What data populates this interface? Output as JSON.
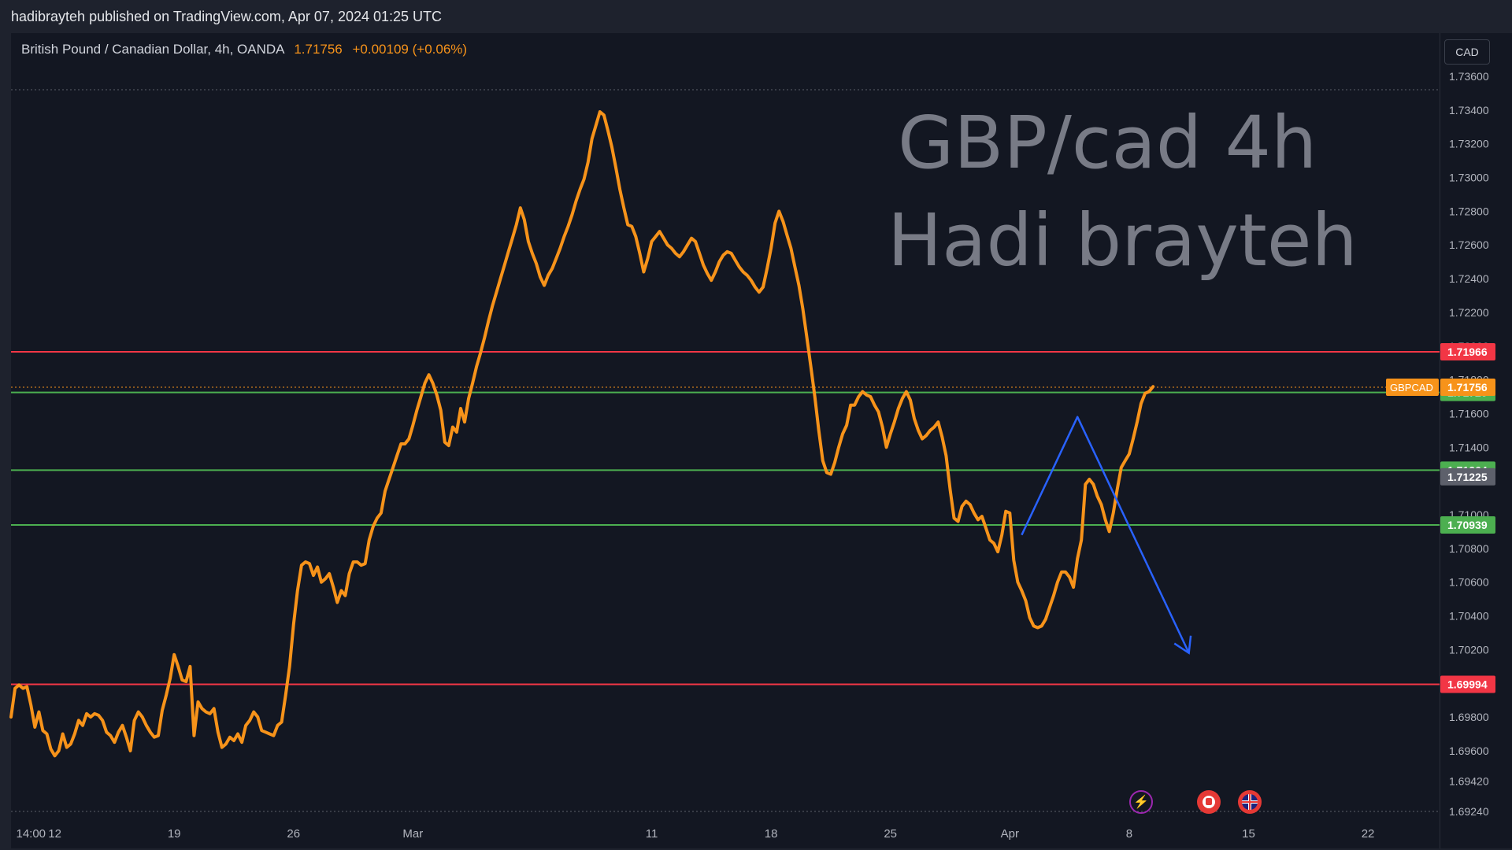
{
  "header": {
    "published_text": "hadibrayteh published on TradingView.com, Apr 07, 2024 01:25 UTC"
  },
  "legend": {
    "symbol_text": "British Pound / Canadian Dollar, 4h, OANDA",
    "last_price": "1.71756",
    "change": "+0.00109 (+0.06%)"
  },
  "currency_button": "CAD",
  "watermark": {
    "line1": "GBP/cad 4h",
    "line2": "Hadi brayteh"
  },
  "colors": {
    "series": "#f7931a",
    "red_line": "#f23645",
    "green_line": "#4caf50",
    "arrow": "#2962ff",
    "background": "#131722"
  },
  "events": [
    {
      "icon": "lightning-icon",
      "color": "#9c27b0"
    },
    {
      "icon": "canada-flag-icon",
      "color": "#e53935"
    },
    {
      "icon": "uk-flag-icon",
      "color": "#e53935"
    }
  ],
  "chart_data": {
    "type": "line",
    "title": "GBP/cad 4h",
    "ylim": [
      1.6921,
      1.7374
    ],
    "y_ticks": [
      1.736,
      1.734,
      1.732,
      1.73,
      1.728,
      1.726,
      1.724,
      1.722,
      1.72,
      1.718,
      1.716,
      1.714,
      1.712,
      1.71,
      1.708,
      1.706,
      1.704,
      1.702,
      1.7,
      1.698,
      1.696,
      1.6942,
      1.6924
    ],
    "y_tick_labels": [
      "1.73600",
      "1.73400",
      "1.73200",
      "1.73000",
      "1.72800",
      "1.72600",
      "1.72400",
      "1.72200",
      "1.72000",
      "1.71800",
      "1.71600",
      "1.71400",
      "1.71200",
      "1.71000",
      "1.70800",
      "1.70600",
      "1.70400",
      "1.70200",
      "1.70000",
      "1.69800",
      "1.69600",
      "1.69420",
      "1.69240"
    ],
    "x_ticks": [
      {
        "label": "14:00",
        "index": 5
      },
      {
        "label": "12",
        "index": 11
      },
      {
        "label": "19",
        "index": 41
      },
      {
        "label": "26",
        "index": 71
      },
      {
        "label": "Mar",
        "index": 101
      },
      {
        "label": "11",
        "index": 161
      },
      {
        "label": "18",
        "index": 191
      },
      {
        "label": "25",
        "index": 221
      },
      {
        "label": "Apr",
        "index": 251
      },
      {
        "label": "8",
        "index": 281
      },
      {
        "label": "15",
        "index": 311
      },
      {
        "label": "22",
        "index": 341
      }
    ],
    "x_range": [
      0,
      359
    ],
    "series": [
      {
        "name": "GBPCAD",
        "x_start": 0,
        "values": [
          1.698,
          1.6997,
          1.6999,
          1.6997,
          1.6998,
          1.6987,
          1.6974,
          1.6983,
          1.6972,
          1.697,
          1.6961,
          1.6957,
          1.696,
          1.697,
          1.6962,
          1.6964,
          1.697,
          1.6978,
          1.6975,
          1.6982,
          1.698,
          1.6982,
          1.6981,
          1.6978,
          1.6971,
          1.6969,
          1.6965,
          1.6971,
          1.6975,
          1.6968,
          1.696,
          1.6978,
          1.6983,
          1.698,
          1.6975,
          1.6971,
          1.6968,
          1.6969,
          1.6984,
          1.6993,
          1.7003,
          1.7017,
          1.701,
          1.7002,
          1.7001,
          1.701,
          1.6969,
          1.6989,
          1.6985,
          1.6983,
          1.6982,
          1.6985,
          1.6971,
          1.6962,
          1.6964,
          1.6968,
          1.6966,
          1.697,
          1.6965,
          1.6975,
          1.6978,
          1.6983,
          1.698,
          1.6972,
          1.6971,
          1.697,
          1.6969,
          1.6975,
          1.6977,
          1.6993,
          1.701,
          1.7035,
          1.7055,
          1.707,
          1.7072,
          1.7071,
          1.7064,
          1.7069,
          1.706,
          1.7062,
          1.7065,
          1.7057,
          1.7048,
          1.7055,
          1.7052,
          1.7065,
          1.7072,
          1.7072,
          1.707,
          1.7071,
          1.7085,
          1.7093,
          1.7098,
          1.7101,
          1.7114,
          1.7121,
          1.7128,
          1.7135,
          1.7142,
          1.7142,
          1.7145,
          1.7153,
          1.7162,
          1.717,
          1.7178,
          1.7183,
          1.7178,
          1.7171,
          1.7162,
          1.7143,
          1.7141,
          1.7152,
          1.7149,
          1.7163,
          1.7155,
          1.7169,
          1.7178,
          1.7188,
          1.7196,
          1.7205,
          1.7215,
          1.7224,
          1.7232,
          1.724,
          1.7248,
          1.7256,
          1.7264,
          1.7272,
          1.7282,
          1.7275,
          1.7262,
          1.7255,
          1.7249,
          1.7241,
          1.7236,
          1.7242,
          1.7246,
          1.7252,
          1.7258,
          1.7265,
          1.7271,
          1.7278,
          1.7286,
          1.7293,
          1.7299,
          1.7309,
          1.7323,
          1.7331,
          1.7339,
          1.7337,
          1.7328,
          1.7318,
          1.7306,
          1.7293,
          1.7282,
          1.7272,
          1.7271,
          1.7265,
          1.7255,
          1.7244,
          1.7252,
          1.7262,
          1.7265,
          1.7268,
          1.7264,
          1.726,
          1.7258,
          1.7255,
          1.7253,
          1.7256,
          1.726,
          1.7264,
          1.7262,
          1.7255,
          1.7248,
          1.7243,
          1.7239,
          1.7244,
          1.725,
          1.7254,
          1.7256,
          1.7255,
          1.7251,
          1.7247,
          1.7244,
          1.7242,
          1.7239,
          1.7235,
          1.7232,
          1.7235,
          1.7246,
          1.7258,
          1.7273,
          1.728,
          1.7274,
          1.7266,
          1.7258,
          1.7247,
          1.7236,
          1.7222,
          1.7205,
          1.7188,
          1.717,
          1.715,
          1.7132,
          1.7125,
          1.7124,
          1.7131,
          1.714,
          1.7148,
          1.7153,
          1.7165,
          1.7165,
          1.717,
          1.7173,
          1.7171,
          1.717,
          1.7165,
          1.7161,
          1.7152,
          1.714,
          1.7148,
          1.7155,
          1.7163,
          1.7169,
          1.7173,
          1.7168,
          1.7157,
          1.715,
          1.7145,
          1.7147,
          1.715,
          1.7152,
          1.7155,
          1.7146,
          1.7135,
          1.7115,
          1.7098,
          1.7096,
          1.7105,
          1.7108,
          1.7106,
          1.7101,
          1.7097,
          1.7099,
          1.7092,
          1.7085,
          1.7083,
          1.7078,
          1.7088,
          1.7102,
          1.7101,
          1.7073,
          1.706,
          1.7055,
          1.7049,
          1.7039,
          1.7034,
          1.7033,
          1.7034,
          1.7038,
          1.7045,
          1.7052,
          1.706,
          1.7066,
          1.7066,
          1.7063,
          1.7057,
          1.7074,
          1.7085,
          1.7118,
          1.7121,
          1.7118,
          1.7111,
          1.7106,
          1.7097,
          1.709,
          1.7101,
          1.7115,
          1.7128,
          1.7132,
          1.7136,
          1.7145,
          1.7155,
          1.7166,
          1.7172,
          1.7173,
          1.7176
        ]
      }
    ],
    "horizontal_levels": [
      {
        "value": 1.71966,
        "label": "1.71966",
        "color": "#f23645"
      },
      {
        "value": 1.71725,
        "label": "1.71725",
        "color": "#4caf50"
      },
      {
        "value": 1.71264,
        "label": "1.71264",
        "color": "#4caf50"
      },
      {
        "value": 1.70939,
        "label": "1.70939",
        "color": "#4caf50"
      },
      {
        "value": 1.69994,
        "label": "1.69994",
        "color": "#f23645"
      }
    ],
    "price_tags": [
      {
        "value": 1.71756,
        "label": "1.71756",
        "symbol": "GBPCAD",
        "color": "#f7931a"
      },
      {
        "value": 1.71225,
        "label": "1.71225",
        "color": "#5d606b"
      }
    ],
    "projection": {
      "color": "#2962ff",
      "points": [
        [
          254,
          1.7088
        ],
        [
          268,
          1.7158
        ],
        [
          296,
          1.7018
        ]
      ]
    },
    "grid": false
  }
}
